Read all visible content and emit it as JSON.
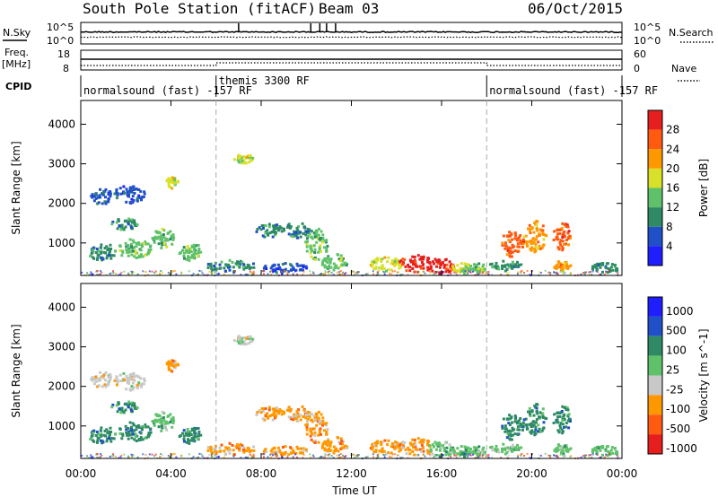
{
  "header": {
    "title": "South Pole Station (fitACF)",
    "beam": "Beam 03",
    "date": "06/Oct/2015"
  },
  "top_panels": {
    "nsky_label": "N.Sky",
    "nsearch_label": "N.Search",
    "freq_label_line1": "Freq.",
    "freq_label_line2": "[MHz]",
    "nave_label": "Nave",
    "cpid_label": "CPID",
    "noise_ticks_left": [
      "10^5",
      "10^0"
    ],
    "noise_ticks_right": [
      "10^5",
      "10^0"
    ],
    "freq_ticks": [
      "18",
      "8"
    ],
    "nave_ticks": [
      "60",
      "0"
    ],
    "cpid_segments": [
      {
        "start_h": 0,
        "end_h": 6,
        "label": "normalsound (fast) -157 RF"
      },
      {
        "start_h": 6,
        "end_h": 18,
        "label": "themis 3300 RF"
      },
      {
        "start_h": 18,
        "end_h": 24,
        "label": "normalsound (fast) -157 RF"
      }
    ]
  },
  "chart_data": [
    {
      "type": "heatmap",
      "name": "power",
      "ylabel": "Slant Range [km]",
      "yticks": [
        "1000",
        "2000",
        "3000",
        "4000"
      ],
      "ylim": [
        180,
        4600
      ],
      "colorbar_label": "Power [dB]",
      "colorbar_ticks": [
        "4",
        "8",
        "12",
        "16",
        "20",
        "24",
        "28"
      ],
      "colors": [
        "#1e1eff",
        "#2050c8",
        "#2e8a64",
        "#5fc26a",
        "#d8e02a",
        "#ff9800",
        "#ff5a10",
        "#e61e1e"
      ],
      "blobs": [
        {
          "t": 0.9,
          "r": 2200,
          "dt": 1.0,
          "dr": 400,
          "lv": 1
        },
        {
          "t": 2.1,
          "r": 2250,
          "dt": 1.4,
          "dr": 450,
          "lv": 1
        },
        {
          "t": 4.0,
          "r": 2550,
          "dt": 0.6,
          "dr": 300,
          "lv": 4
        },
        {
          "t": 1.9,
          "r": 1500,
          "dt": 1.2,
          "dr": 300,
          "lv": 2
        },
        {
          "t": 3.6,
          "r": 1150,
          "dt": 1.0,
          "dr": 500,
          "lv": 3
        },
        {
          "t": 2.3,
          "r": 900,
          "dt": 1.6,
          "dr": 500,
          "lv": 3
        },
        {
          "t": 0.9,
          "r": 800,
          "dt": 1.2,
          "dr": 450,
          "lv": 2
        },
        {
          "t": 4.8,
          "r": 800,
          "dt": 1.0,
          "dr": 500,
          "lv": 3
        },
        {
          "t": 7.2,
          "r": 3150,
          "dt": 0.9,
          "dr": 250,
          "lv": 4
        },
        {
          "t": 6.6,
          "r": 450,
          "dt": 2.2,
          "dr": 300,
          "lv": 2
        },
        {
          "t": 8.3,
          "r": 1350,
          "dt": 1.2,
          "dr": 350,
          "lv": 2
        },
        {
          "t": 9.5,
          "r": 1350,
          "dt": 1.2,
          "dr": 400,
          "lv": 2
        },
        {
          "t": 10.4,
          "r": 1000,
          "dt": 1.0,
          "dr": 800,
          "lv": 3
        },
        {
          "t": 9.0,
          "r": 400,
          "dt": 2.0,
          "dr": 250,
          "lv": 1
        },
        {
          "t": 11.2,
          "r": 550,
          "dt": 1.2,
          "dr": 400,
          "lv": 3
        },
        {
          "t": 13.5,
          "r": 500,
          "dt": 1.5,
          "dr": 350,
          "lv": 4
        },
        {
          "t": 14.8,
          "r": 500,
          "dt": 1.5,
          "dr": 450,
          "lv": 7
        },
        {
          "t": 15.9,
          "r": 450,
          "dt": 1.2,
          "dr": 400,
          "lv": 7
        },
        {
          "t": 16.8,
          "r": 400,
          "dt": 0.8,
          "dr": 300,
          "lv": 4
        },
        {
          "t": 17.5,
          "r": 400,
          "dt": 0.8,
          "dr": 250,
          "lv": 3
        },
        {
          "t": 19.1,
          "r": 1000,
          "dt": 1.0,
          "dr": 700,
          "lv": 6
        },
        {
          "t": 20.1,
          "r": 1200,
          "dt": 1.0,
          "dr": 800,
          "lv": 5
        },
        {
          "t": 21.3,
          "r": 1200,
          "dt": 0.8,
          "dr": 700,
          "lv": 6
        },
        {
          "t": 18.8,
          "r": 450,
          "dt": 1.6,
          "dr": 250,
          "lv": 2
        },
        {
          "t": 21.3,
          "r": 450,
          "dt": 0.8,
          "dr": 250,
          "lv": 5
        },
        {
          "t": 23.2,
          "r": 400,
          "dt": 1.2,
          "dr": 250,
          "lv": 2
        }
      ]
    },
    {
      "type": "heatmap",
      "name": "velocity",
      "ylabel": "Slant Range [km]",
      "yticks": [
        "1000",
        "2000",
        "3000",
        "4000"
      ],
      "ylim": [
        180,
        4600
      ],
      "colorbar_label": "Velocity [m s^-1]",
      "colorbar_ticks": [
        "1000",
        "500",
        "100",
        "25",
        "-25",
        "-100",
        "-500",
        "-1000"
      ],
      "colors": [
        "#1e1eff",
        "#2050c8",
        "#2e8a64",
        "#5fc26a",
        "#c8c8c8",
        "#ff9800",
        "#ff5a10",
        "#e61e1e"
      ],
      "blobs": [
        {
          "t": 0.9,
          "r": 2200,
          "dt": 1.0,
          "dr": 400,
          "lv": 4
        },
        {
          "t": 2.1,
          "r": 2150,
          "dt": 1.4,
          "dr": 450,
          "lv": 4
        },
        {
          "t": 4.0,
          "r": 2550,
          "dt": 0.6,
          "dr": 300,
          "lv": 5
        },
        {
          "t": 1.9,
          "r": 1500,
          "dt": 1.2,
          "dr": 300,
          "lv": 2
        },
        {
          "t": 3.6,
          "r": 1150,
          "dt": 1.0,
          "dr": 500,
          "lv": 3
        },
        {
          "t": 2.3,
          "r": 900,
          "dt": 1.6,
          "dr": 500,
          "lv": 2
        },
        {
          "t": 0.9,
          "r": 800,
          "dt": 1.2,
          "dr": 450,
          "lv": 2
        },
        {
          "t": 4.8,
          "r": 800,
          "dt": 1.0,
          "dr": 500,
          "lv": 2
        },
        {
          "t": 7.2,
          "r": 3200,
          "dt": 0.9,
          "dr": 250,
          "lv": 4
        },
        {
          "t": 6.6,
          "r": 450,
          "dt": 2.2,
          "dr": 300,
          "lv": 5
        },
        {
          "t": 8.3,
          "r": 1350,
          "dt": 1.2,
          "dr": 350,
          "lv": 5
        },
        {
          "t": 9.5,
          "r": 1350,
          "dt": 1.2,
          "dr": 400,
          "lv": 5
        },
        {
          "t": 10.4,
          "r": 1000,
          "dt": 1.0,
          "dr": 800,
          "lv": 5
        },
        {
          "t": 9.0,
          "r": 400,
          "dt": 2.0,
          "dr": 250,
          "lv": 5
        },
        {
          "t": 11.2,
          "r": 550,
          "dt": 1.2,
          "dr": 400,
          "lv": 5
        },
        {
          "t": 13.5,
          "r": 500,
          "dt": 1.5,
          "dr": 350,
          "lv": 5
        },
        {
          "t": 14.8,
          "r": 500,
          "dt": 1.5,
          "dr": 450,
          "lv": 5
        },
        {
          "t": 15.9,
          "r": 450,
          "dt": 1.2,
          "dr": 400,
          "lv": 3
        },
        {
          "t": 16.8,
          "r": 400,
          "dt": 0.8,
          "dr": 300,
          "lv": 3
        },
        {
          "t": 17.5,
          "r": 400,
          "dt": 0.8,
          "dr": 250,
          "lv": 3
        },
        {
          "t": 19.1,
          "r": 1000,
          "dt": 1.0,
          "dr": 700,
          "lv": 2
        },
        {
          "t": 20.1,
          "r": 1200,
          "dt": 1.0,
          "dr": 800,
          "lv": 2
        },
        {
          "t": 21.3,
          "r": 1200,
          "dt": 0.8,
          "dr": 700,
          "lv": 2
        },
        {
          "t": 18.8,
          "r": 450,
          "dt": 1.6,
          "dr": 250,
          "lv": 3
        },
        {
          "t": 21.3,
          "r": 450,
          "dt": 0.8,
          "dr": 250,
          "lv": 3
        },
        {
          "t": 23.2,
          "r": 400,
          "dt": 1.2,
          "dr": 250,
          "lv": 3
        }
      ]
    }
  ],
  "x_axis": {
    "ticks": [
      "00:00",
      "04:00",
      "08:00",
      "12:00",
      "16:00",
      "20:00",
      "00:00"
    ],
    "tick_hours": [
      0,
      4,
      8,
      12,
      16,
      20,
      24
    ],
    "label": "Time UT"
  }
}
